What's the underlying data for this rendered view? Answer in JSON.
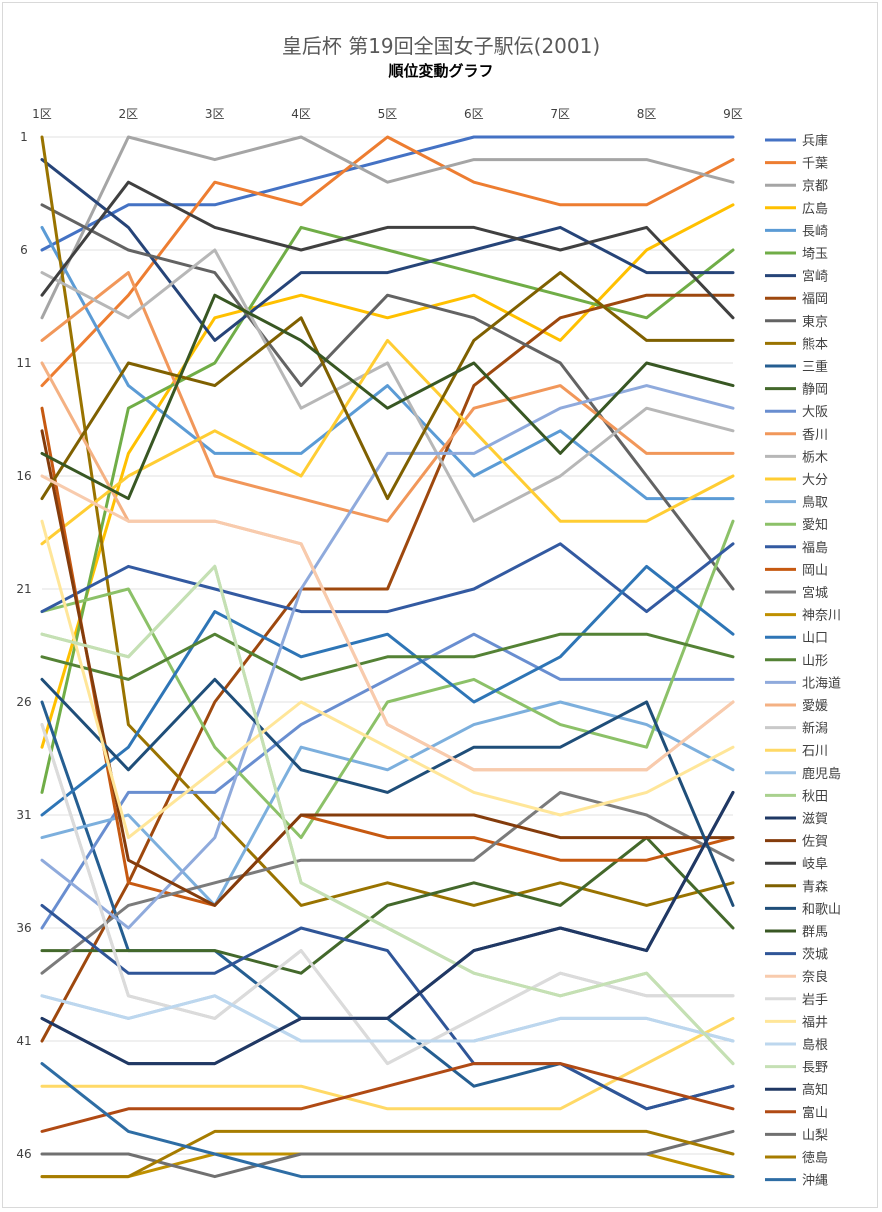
{
  "chart_data": {
    "type": "line",
    "title": "皇后杯 第19回全国女子駅伝(2001)",
    "subtitle": "順位変動グラフ",
    "categories": [
      "1区",
      "2区",
      "3区",
      "4区",
      "5区",
      "6区",
      "7区",
      "8区",
      "9区"
    ],
    "y_tick_labels": [
      "1",
      "6",
      "11",
      "16",
      "21",
      "26",
      "31",
      "36",
      "41",
      "46"
    ],
    "y_ticks": [
      1,
      6,
      11,
      16,
      21,
      26,
      31,
      36,
      41,
      46
    ],
    "ylim": [
      1,
      47
    ],
    "y_reversed": true,
    "grid": "horizontal",
    "legend_position": "right",
    "series": [
      {
        "name": "兵庫",
        "color": "#4472C4",
        "values": [
          6,
          4,
          4,
          3,
          2,
          1,
          1,
          1,
          1
        ]
      },
      {
        "name": "千葉",
        "color": "#ED7D31",
        "values": [
          12,
          8,
          3,
          4,
          1,
          3,
          4,
          4,
          2
        ]
      },
      {
        "name": "京都",
        "color": "#A5A5A5",
        "values": [
          9,
          1,
          2,
          1,
          3,
          2,
          2,
          2,
          3
        ]
      },
      {
        "name": "広島",
        "color": "#FFC000",
        "values": [
          28,
          15,
          9,
          8,
          9,
          8,
          10,
          6,
          4
        ]
      },
      {
        "name": "長崎",
        "color": "#5B9BD5",
        "values": [
          5,
          12,
          15,
          15,
          12,
          16,
          14,
          17,
          17
        ]
      },
      {
        "name": "埼玉",
        "color": "#70AD47",
        "values": [
          30,
          13,
          11,
          5,
          6,
          7,
          8,
          9,
          6
        ]
      },
      {
        "name": "宮崎",
        "color": "#264478",
        "values": [
          2,
          5,
          10,
          7,
          7,
          6,
          5,
          7,
          7
        ]
      },
      {
        "name": "福岡",
        "color": "#9E480E",
        "values": [
          41,
          34,
          26,
          21,
          21,
          12,
          9,
          8,
          8
        ]
      },
      {
        "name": "東京",
        "color": "#636363",
        "values": [
          4,
          6,
          7,
          12,
          8,
          9,
          11,
          16,
          21
        ]
      },
      {
        "name": "熊本",
        "color": "#997300",
        "values": [
          1,
          27,
          31,
          35,
          34,
          35,
          34,
          35,
          34
        ]
      },
      {
        "name": "三重",
        "color": "#255E91",
        "values": [
          26,
          37,
          37,
          40,
          40,
          43,
          42,
          44,
          43
        ]
      },
      {
        "name": "静岡",
        "color": "#43682B",
        "values": [
          37,
          37,
          37,
          38,
          35,
          34,
          35,
          32,
          36
        ]
      },
      {
        "name": "大阪",
        "color": "#698ED0",
        "values": [
          36,
          30,
          30,
          27,
          25,
          23,
          25,
          25,
          25
        ]
      },
      {
        "name": "香川",
        "color": "#F1975A",
        "values": [
          10,
          7,
          16,
          17,
          18,
          13,
          12,
          15,
          15
        ]
      },
      {
        "name": "栃木",
        "color": "#B7B7B7",
        "values": [
          7,
          9,
          6,
          13,
          11,
          18,
          16,
          13,
          14
        ]
      },
      {
        "name": "大分",
        "color": "#FFCD33",
        "values": [
          19,
          16,
          14,
          16,
          10,
          14,
          18,
          18,
          16
        ]
      },
      {
        "name": "鳥取",
        "color": "#7CAFDD",
        "values": [
          32,
          31,
          35,
          28,
          29,
          27,
          26,
          27,
          29
        ]
      },
      {
        "name": "愛知",
        "color": "#8CC168",
        "values": [
          22,
          21,
          28,
          32,
          26,
          25,
          27,
          28,
          18
        ]
      },
      {
        "name": "福島",
        "color": "#335AA1",
        "values": [
          22,
          20,
          21,
          22,
          22,
          21,
          19,
          22,
          19
        ]
      },
      {
        "name": "岡山",
        "color": "#C65911",
        "values": [
          13,
          34,
          35,
          31,
          32,
          32,
          33,
          33,
          32
        ]
      },
      {
        "name": "宮城",
        "color": "#7B7B7B",
        "values": [
          38,
          35,
          34,
          33,
          33,
          33,
          30,
          31,
          33
        ]
      },
      {
        "name": "神奈川",
        "color": "#BF9000",
        "values": [
          47,
          47,
          46,
          46,
          46,
          46,
          46,
          46,
          47
        ]
      },
      {
        "name": "山口",
        "color": "#2E75B6",
        "values": [
          31,
          28,
          22,
          24,
          23,
          26,
          24,
          20,
          23
        ]
      },
      {
        "name": "山形",
        "color": "#548235",
        "values": [
          24,
          25,
          23,
          25,
          24,
          24,
          23,
          23,
          24
        ]
      },
      {
        "name": "北海道",
        "color": "#8FAADC",
        "values": [
          33,
          36,
          32,
          21,
          15,
          15,
          13,
          12,
          13
        ]
      },
      {
        "name": "愛媛",
        "color": "#F4B183",
        "values": [
          11,
          18,
          18,
          19,
          27,
          29,
          29,
          29,
          26
        ]
      },
      {
        "name": "新潟",
        "color": "#C9C9C9",
        "values": [
          27,
          39,
          40,
          37,
          42,
          40,
          38,
          39,
          39
        ]
      },
      {
        "name": "石川",
        "color": "#FFD966",
        "values": [
          43,
          43,
          43,
          43,
          44,
          44,
          44,
          42,
          40
        ]
      },
      {
        "name": "鹿児島",
        "color": "#9DC3E6",
        "values": [
          39,
          40,
          39,
          41,
          41,
          41,
          40,
          40,
          41
        ]
      },
      {
        "name": "秋田",
        "color": "#A9D18E",
        "values": [
          23,
          24,
          20,
          34,
          36,
          38,
          39,
          38,
          42
        ]
      },
      {
        "name": "滋賀",
        "color": "#1F3864",
        "values": [
          40,
          42,
          42,
          40,
          40,
          37,
          36,
          37,
          30
        ]
      },
      {
        "name": "佐賀",
        "color": "#843C0C",
        "values": [
          14,
          33,
          35,
          31,
          31,
          31,
          32,
          32,
          32
        ]
      },
      {
        "name": "岐阜",
        "color": "#404040",
        "values": [
          8,
          3,
          5,
          6,
          5,
          5,
          6,
          5,
          9
        ]
      },
      {
        "name": "青森",
        "color": "#7F6000",
        "values": [
          17,
          11,
          12,
          9,
          17,
          10,
          7,
          10,
          10
        ]
      },
      {
        "name": "和歌山",
        "color": "#1F4E79",
        "values": [
          25,
          29,
          25,
          29,
          30,
          28,
          28,
          26,
          35
        ]
      },
      {
        "name": "群馬",
        "color": "#385723",
        "values": [
          15,
          17,
          8,
          10,
          13,
          11,
          15,
          11,
          12
        ]
      },
      {
        "name": "茨城",
        "color": "#2F5597",
        "values": [
          35,
          38,
          38,
          36,
          37,
          42,
          42,
          44,
          43
        ]
      },
      {
        "name": "奈良",
        "color": "#F8CBAD",
        "values": [
          16,
          18,
          18,
          19,
          27,
          29,
          29,
          29,
          26
        ]
      },
      {
        "name": "岩手",
        "color": "#DBDBDB",
        "values": [
          27,
          39,
          40,
          37,
          42,
          40,
          38,
          39,
          39
        ]
      },
      {
        "name": "福井",
        "color": "#FFE699",
        "values": [
          18,
          32,
          29,
          26,
          28,
          30,
          31,
          30,
          28
        ]
      },
      {
        "name": "島根",
        "color": "#BDD7EE",
        "values": [
          39,
          40,
          39,
          41,
          41,
          41,
          40,
          40,
          41
        ]
      },
      {
        "name": "長野",
        "color": "#C5E0B4",
        "values": [
          23,
          24,
          20,
          34,
          36,
          38,
          39,
          38,
          42
        ]
      },
      {
        "name": "高知",
        "color": "#203864",
        "values": [
          40,
          42,
          42,
          40,
          40,
          37,
          36,
          37,
          30
        ]
      },
      {
        "name": "富山",
        "color": "#B04A14",
        "values": [
          45,
          44,
          44,
          44,
          43,
          42,
          42,
          43,
          44
        ]
      },
      {
        "name": "山梨",
        "color": "#707070",
        "values": [
          46,
          46,
          47,
          46,
          46,
          46,
          46,
          46,
          45
        ]
      },
      {
        "name": "徳島",
        "color": "#A67C00",
        "values": [
          47,
          47,
          45,
          45,
          45,
          45,
          45,
          45,
          46
        ]
      },
      {
        "name": "沖縄",
        "color": "#2E6DA4",
        "values": [
          42,
          45,
          46,
          47,
          47,
          47,
          47,
          47,
          47
        ]
      }
    ]
  }
}
